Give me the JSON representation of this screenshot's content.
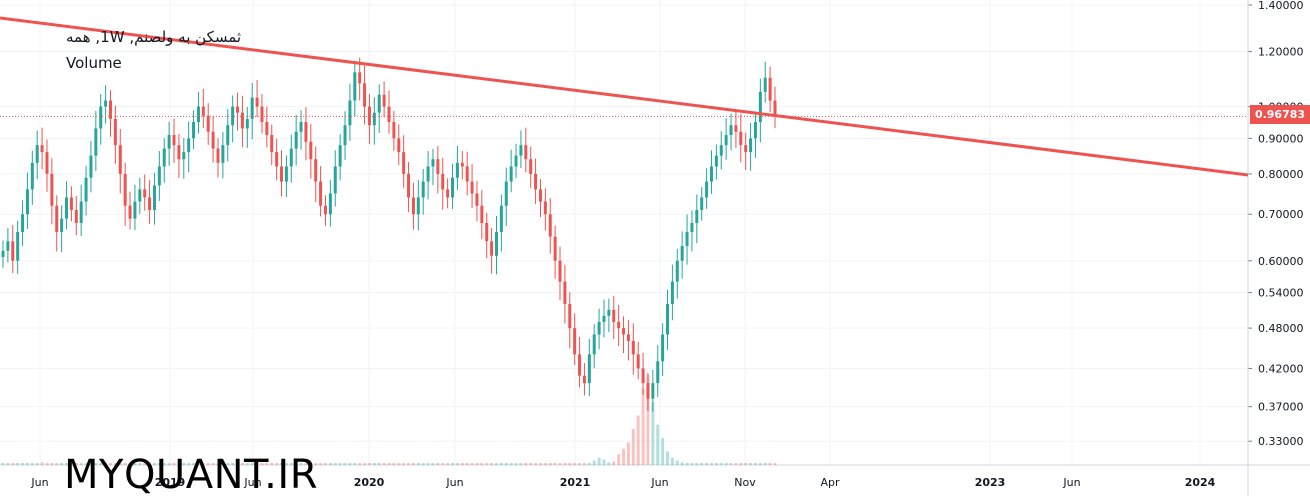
{
  "legend": {
    "title": "ثمسکن به ولصنم, 1W, همه",
    "volume_label": "Volume"
  },
  "watermark": "MYQUANT.IR",
  "colors": {
    "up": "#26a69a",
    "down": "#ef5350",
    "trendline": "#ef5350",
    "grid": "#f0f3fa",
    "axis_text": "#131722",
    "price_line": "#ef5350"
  },
  "chart_data": {
    "type": "candlestick",
    "scale": "log",
    "y_ticks": [
      "1.40000",
      "1.20000",
      "1.00000",
      "0.90000",
      "0.80000",
      "0.70000",
      "0.60000",
      "0.54000",
      "0.48000",
      "0.42000",
      "0.37000",
      "0.33000"
    ],
    "y_tick_values": [
      1.4,
      1.2,
      1.0,
      0.9,
      0.8,
      0.7,
      0.6,
      0.54,
      0.48,
      0.42,
      0.37,
      0.33
    ],
    "x_ticks": [
      "Jun",
      "2019",
      "Jun",
      "2020",
      "Jun",
      "2021",
      "Jun",
      "Nov",
      "Apr",
      "2023",
      "Jun",
      "2024"
    ],
    "last_price": "0.96783",
    "last_price_value": 0.96783,
    "trendline": {
      "start": {
        "date": "2018-02",
        "price": 1.37
      },
      "end": {
        "date": "2024-04",
        "price": 0.79
      }
    },
    "weekly_closes": [
      0.62,
      0.64,
      0.6,
      0.66,
      0.7,
      0.76,
      0.83,
      0.88,
      0.86,
      0.8,
      0.72,
      0.66,
      0.69,
      0.74,
      0.71,
      0.68,
      0.73,
      0.79,
      0.85,
      0.93,
      1.0,
      1.02,
      0.96,
      0.88,
      0.8,
      0.72,
      0.69,
      0.73,
      0.76,
      0.74,
      0.71,
      0.77,
      0.82,
      0.87,
      0.91,
      0.88,
      0.84,
      0.86,
      0.9,
      0.95,
      1.0,
      0.97,
      0.92,
      0.87,
      0.83,
      0.88,
      0.94,
      1.0,
      0.98,
      0.93,
      0.96,
      1.03,
      1.0,
      0.95,
      0.91,
      0.86,
      0.82,
      0.78,
      0.82,
      0.87,
      0.92,
      0.95,
      0.89,
      0.84,
      0.78,
      0.72,
      0.7,
      0.75,
      0.82,
      0.88,
      0.94,
      1.02,
      1.12,
      1.08,
      1.0,
      0.94,
      0.98,
      1.04,
      1.0,
      0.95,
      0.9,
      0.86,
      0.8,
      0.74,
      0.7,
      0.74,
      0.78,
      0.82,
      0.84,
      0.8,
      0.76,
      0.74,
      0.79,
      0.83,
      0.82,
      0.78,
      0.75,
      0.72,
      0.68,
      0.64,
      0.61,
      0.66,
      0.72,
      0.78,
      0.82,
      0.85,
      0.88,
      0.84,
      0.8,
      0.76,
      0.73,
      0.7,
      0.65,
      0.6,
      0.56,
      0.52,
      0.48,
      0.44,
      0.41,
      0.4,
      0.44,
      0.47,
      0.49,
      0.5,
      0.51,
      0.49,
      0.48,
      0.47,
      0.46,
      0.44,
      0.42,
      0.4,
      0.38,
      0.4,
      0.43,
      0.47,
      0.52,
      0.56,
      0.6,
      0.63,
      0.66,
      0.68,
      0.71,
      0.74,
      0.78,
      0.82,
      0.85,
      0.88,
      0.91,
      0.94,
      0.92,
      0.88,
      0.86,
      0.9,
      0.95,
      1.05,
      1.1,
      1.02,
      0.97
    ],
    "volumes": [
      0.02,
      0.01,
      0.01,
      0.02,
      0.01,
      0.01,
      0.01,
      0.02,
      0.03,
      0.02,
      0.02,
      0.01,
      0.01,
      0.01,
      0.02,
      0.01,
      0.01,
      0.01,
      0.01,
      0.02,
      0.01,
      0.01,
      0.02,
      0.02,
      0.01,
      0.01,
      0.01,
      0.01,
      0.02,
      0.01,
      0.01,
      0.01,
      0.02,
      0.01,
      0.02,
      0.01,
      0.03,
      0.02,
      0.01,
      0.02,
      0.01,
      0.02,
      0.01,
      0.01,
      0.01,
      0.02,
      0.01,
      0.01,
      0.02,
      0.01,
      0.01,
      0.02,
      0.01,
      0.01,
      0.01,
      0.01,
      0.02,
      0.01,
      0.01,
      0.01,
      0.01,
      0.02,
      0.01,
      0.01,
      0.01,
      0.01,
      0.01,
      0.01,
      0.02,
      0.01,
      0.01,
      0.01,
      0.02,
      0.01,
      0.01,
      0.01,
      0.01,
      0.01,
      0.01,
      0.01,
      0.01,
      0.01,
      0.01,
      0.01,
      0.01,
      0.01,
      0.01,
      0.01,
      0.01,
      0.01,
      0.01,
      0.01,
      0.01,
      0.01,
      0.01,
      0.01,
      0.01,
      0.01,
      0.01,
      0.01,
      0.01,
      0.01,
      0.01,
      0.01,
      0.01,
      0.01,
      0.01,
      0.01,
      0.01,
      0.01,
      0.01,
      0.01,
      0.01,
      0.01,
      0.01,
      0.01,
      0.01,
      0.01,
      0.01,
      0.01,
      0.02,
      0.05,
      0.08,
      0.06,
      0.03,
      0.04,
      0.12,
      0.18,
      0.25,
      0.4,
      0.55,
      0.85,
      1.0,
      0.7,
      0.45,
      0.3,
      0.15,
      0.08,
      0.05,
      0.03,
      0.02,
      0.02,
      0.02,
      0.01,
      0.01,
      0.01,
      0.01,
      0.01,
      0.01,
      0.01,
      0.01,
      0.01,
      0.02,
      0.02,
      0.01,
      0.02,
      0.02,
      0.01,
      0.01
    ]
  }
}
